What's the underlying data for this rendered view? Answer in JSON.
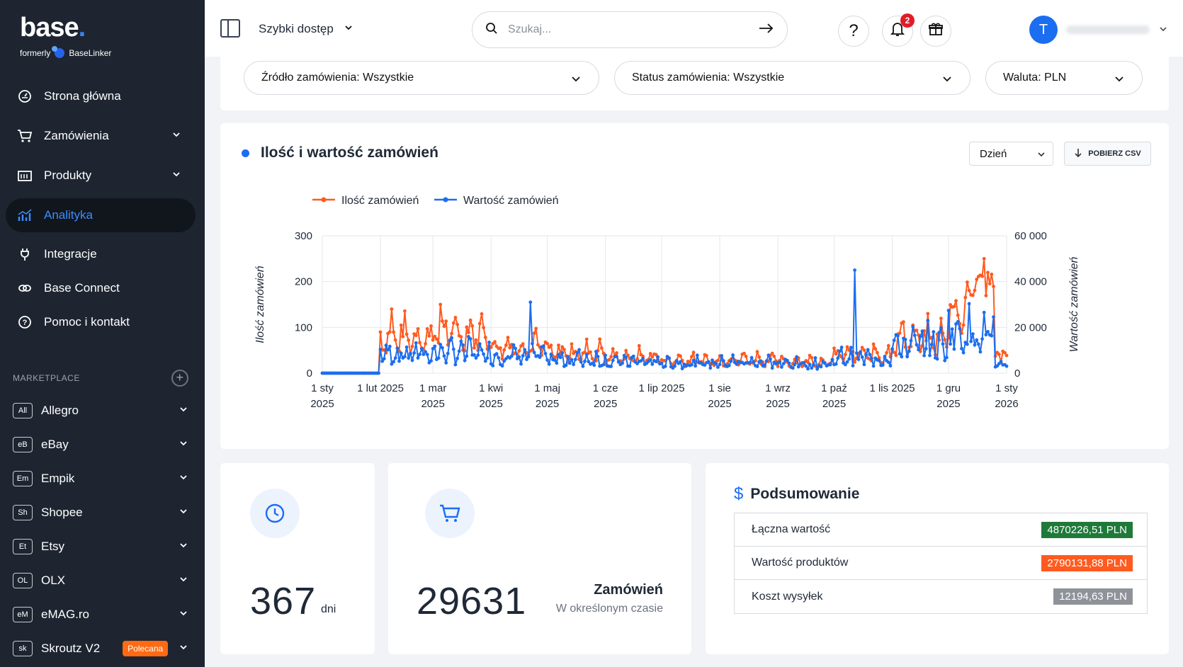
{
  "brand": {
    "logo": "base",
    "formerly": "formerly",
    "formerly_brand": "BaseLinker"
  },
  "sidebar": {
    "nav": [
      {
        "label": "Strona główna",
        "icon": "dashboard-icon",
        "has_chevron": false,
        "active": false
      },
      {
        "label": "Zamówienia",
        "icon": "cart-icon",
        "has_chevron": true,
        "active": false
      },
      {
        "label": "Produkty",
        "icon": "products-icon",
        "has_chevron": true,
        "active": false
      },
      {
        "label": "Analityka",
        "icon": "analytics-icon",
        "has_chevron": false,
        "active": true
      },
      {
        "label": "Integracje",
        "icon": "plug-icon",
        "has_chevron": false,
        "active": false
      },
      {
        "label": "Base Connect",
        "icon": "link-icon",
        "has_chevron": false,
        "active": false
      },
      {
        "label": "Pomoc i kontakt",
        "icon": "help-icon",
        "has_chevron": false,
        "active": false
      }
    ],
    "marketplace_header": "MARKETPLACE",
    "marketplaces": [
      {
        "badge": "All",
        "label": "Allegro"
      },
      {
        "badge": "eB",
        "label": "eBay"
      },
      {
        "badge": "Em",
        "label": "Empik"
      },
      {
        "badge": "Sh",
        "label": "Shopee"
      },
      {
        "badge": "Et",
        "label": "Etsy"
      },
      {
        "badge": "OL",
        "label": "OLX"
      },
      {
        "badge": "eM",
        "label": "eMAG.ro"
      },
      {
        "badge": "sk",
        "label": "Skroutz V2",
        "tag": "Polecana"
      }
    ]
  },
  "topbar": {
    "quick_access": "Szybki dostęp",
    "search_placeholder": "Szukaj...",
    "notifications_count": "2",
    "avatar_letter": "T"
  },
  "filters": {
    "source": "Źródło zamówienia: Wszystkie",
    "status": "Status zamówienia: Wszystkie",
    "currency": "Waluta: PLN"
  },
  "chart_card": {
    "title": "Ilość i wartość zamówień",
    "period": "Dzień",
    "csv_button": "POBIERZ CSV"
  },
  "chart_data": {
    "type": "line",
    "series": [
      {
        "name": "Ilość zamówień",
        "color": "#ff5a1f",
        "axis": "left"
      },
      {
        "name": "Wartość zamówień",
        "color": "#1b6ef0",
        "axis": "right"
      }
    ],
    "ylabel_left": "Ilość zamówień",
    "ylabel_right": "Wartość zamówień",
    "ylim_left": [
      0,
      300
    ],
    "ylim_right": [
      0,
      60000
    ],
    "yticks_left": [
      "0",
      "100",
      "200",
      "300"
    ],
    "yticks_right": [
      "0",
      "20 000",
      "40 000",
      "60 000"
    ],
    "xlim": [
      "2025-01-01",
      "2026-01-01"
    ],
    "xticks": [
      [
        "1 sty",
        "2025"
      ],
      [
        "1 lut 2025",
        ""
      ],
      [
        "1 mar",
        "2025"
      ],
      [
        "1 kwi",
        "2025"
      ],
      [
        "1 maj",
        "2025"
      ],
      [
        "1 cze",
        "2025"
      ],
      [
        "1 lip 2025",
        ""
      ],
      [
        "1 sie",
        "2025"
      ],
      [
        "1 wrz",
        "2025"
      ],
      [
        "1 paź",
        "2025"
      ],
      [
        "1 lis 2025",
        ""
      ],
      [
        "1 gru",
        "2025"
      ],
      [
        "1 sty",
        "2026"
      ]
    ],
    "legend": "top-left",
    "grid": true,
    "monthly_orders_avg": [
      0,
      80,
      90,
      60,
      45,
      35,
      28,
      30,
      25,
      40,
      75,
      140
    ],
    "monthly_value_avg": [
      0,
      8500,
      9000,
      7500,
      6000,
      5000,
      4500,
      4800,
      4000,
      6500,
      12000,
      18000
    ],
    "orders_peak": [
      [
        "2025-12-20",
        250
      ],
      [
        "2025-03-05",
        150
      ],
      [
        "2025-02-07",
        140
      ]
    ],
    "value_peak": [
      [
        "2025-10-12",
        45000
      ],
      [
        "2025-04-22",
        31000
      ],
      [
        "2025-11-20",
        23000
      ]
    ]
  },
  "stats": {
    "days_value": "367",
    "days_unit": "dni",
    "orders_value": "29631",
    "orders_label": "Zamówień",
    "orders_sub": "W określonym czasie"
  },
  "summary": {
    "title": "Podsumowanie",
    "rows": [
      {
        "label": "Łączna wartość",
        "value": "4870226,51 PLN",
        "color": "#1f7a3a"
      },
      {
        "label": "Wartość produktów",
        "value": "2790131,88 PLN",
        "color": "#ff5a1f"
      },
      {
        "label": "Koszt wysyłek",
        "value": "12194,63 PLN",
        "color": "#8e939a"
      }
    ]
  }
}
